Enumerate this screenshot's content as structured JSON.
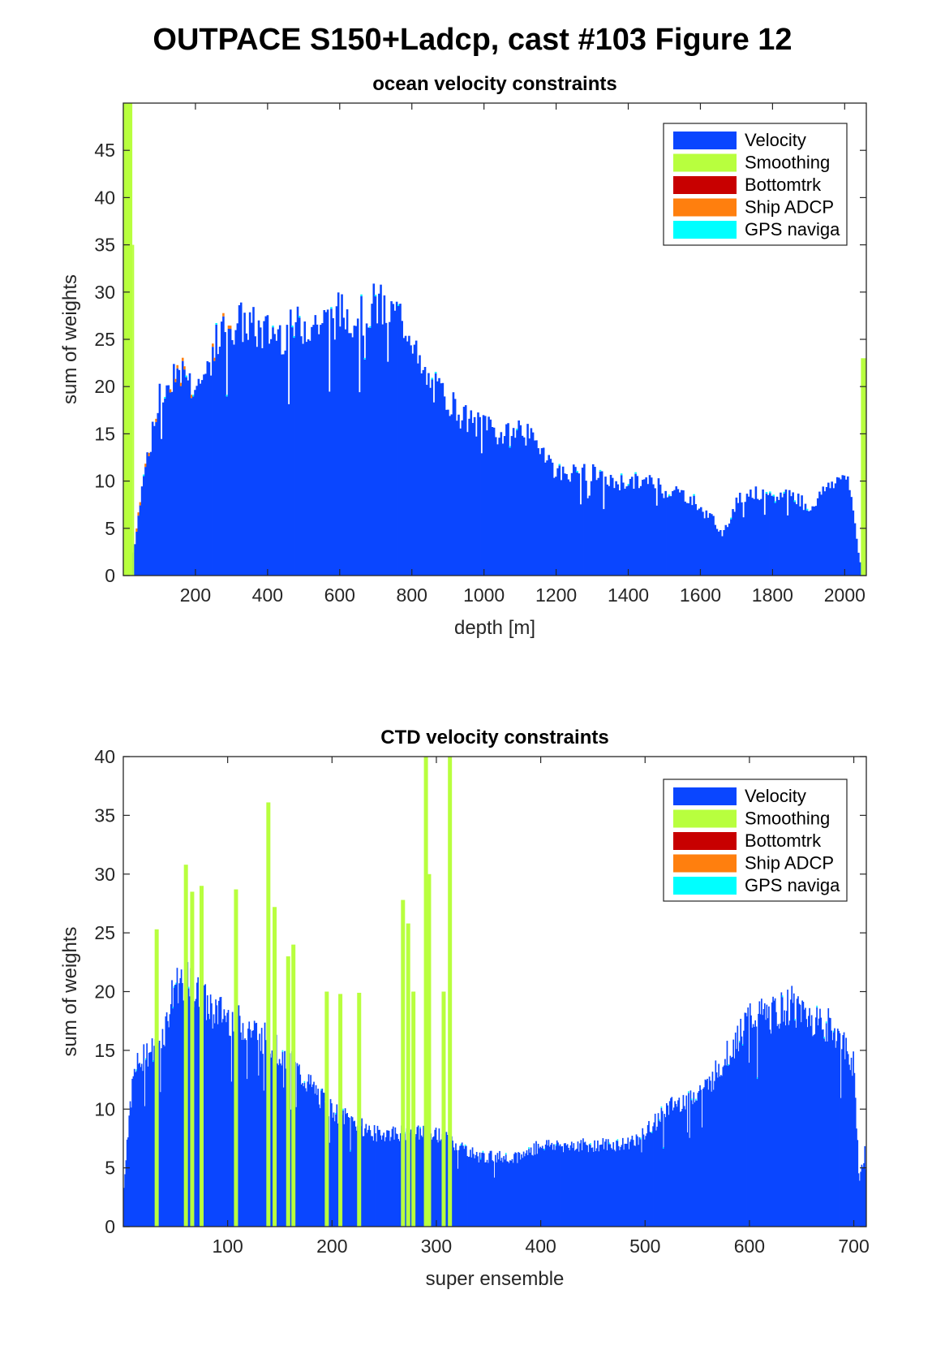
{
  "figure_title": "OUTPACE S150+Ladcp, cast #103  Figure 12",
  "chart_data": [
    {
      "type": "bar",
      "stacked": true,
      "title": "ocean velocity constraints",
      "xlabel": "depth [m]",
      "ylabel": "sum of weights",
      "xlim": [
        0,
        2060
      ],
      "ylim": [
        0,
        50
      ],
      "xticks": [
        200,
        400,
        600,
        800,
        1000,
        1200,
        1400,
        1600,
        1800,
        2000
      ],
      "yticks": [
        0,
        5,
        10,
        15,
        20,
        25,
        30,
        35,
        40,
        45
      ],
      "legend_position": "top-right",
      "legend": [
        "Velocity",
        "Smoothing",
        "Bottomtrk",
        "Ship ADCP",
        "GPS naviga"
      ],
      "colors": {
        "Velocity": "#0a46ff",
        "Smoothing": "#b8ff3e",
        "Bottomtrk": "#c80000",
        "Ship ADCP": "#ff7f0e",
        "GPS naviga": "#00ffff"
      },
      "x_profile": [
        0,
        10,
        20,
        30,
        40,
        60,
        80,
        100,
        120,
        140,
        160,
        180,
        200,
        220,
        240,
        260,
        280,
        300,
        340,
        380,
        420,
        460,
        500,
        540,
        560,
        600,
        640,
        660,
        700,
        740,
        760,
        780,
        800,
        820,
        860,
        900,
        940,
        980,
        1000,
        1040,
        1080,
        1100,
        1140,
        1160,
        1200,
        1240,
        1300,
        1340,
        1400,
        1440,
        1480,
        1500,
        1540,
        1580,
        1600,
        1640,
        1660,
        1700,
        1740,
        1800,
        1840,
        1880,
        1900,
        1940,
        1960,
        1980,
        2000,
        2020,
        2040,
        2050
      ],
      "velocity_profile": [
        0,
        0,
        1,
        3,
        6,
        12,
        15,
        19,
        20,
        22,
        22,
        21,
        20,
        21,
        23,
        25,
        26,
        27,
        27,
        26,
        26,
        26,
        27,
        27,
        27,
        28,
        28,
        28,
        29,
        28,
        28,
        27,
        26,
        22,
        20,
        19,
        17,
        16,
        17,
        15,
        15,
        16,
        14,
        14,
        11,
        11,
        11,
        10,
        10,
        10,
        10,
        9,
        9,
        8,
        7,
        6,
        4,
        8,
        9,
        8,
        9,
        8,
        7,
        9,
        10,
        10,
        11,
        8,
        2,
        0
      ],
      "smoothing_regions": [
        {
          "x_start": 0,
          "x_end": 25,
          "peak": 50
        },
        {
          "x_start": 25,
          "x_end": 30,
          "peak": 35
        },
        {
          "x_start": 2045,
          "x_end": 2060,
          "peak": 23
        }
      ],
      "ship_adcp_band": {
        "x_start": 20,
        "x_end": 300
      }
    },
    {
      "type": "bar",
      "stacked": true,
      "title": "CTD velocity constraints",
      "xlabel": "super ensemble",
      "ylabel": "sum of weights",
      "xlim": [
        0,
        712
      ],
      "ylim": [
        0,
        40
      ],
      "xticks": [
        100,
        200,
        300,
        400,
        500,
        600,
        700
      ],
      "yticks": [
        0,
        5,
        10,
        15,
        20,
        25,
        30,
        35,
        40
      ],
      "legend_position": "top-right",
      "legend": [
        "Velocity",
        "Smoothing",
        "Bottomtrk",
        "Ship ADCP",
        "GPS naviga"
      ],
      "colors": {
        "Velocity": "#0a46ff",
        "Smoothing": "#b8ff3e",
        "Bottomtrk": "#c80000",
        "Ship ADCP": "#ff7f0e",
        "GPS naviga": "#00ffff"
      },
      "x_profile": [
        0,
        5,
        10,
        20,
        30,
        40,
        50,
        60,
        70,
        80,
        100,
        120,
        140,
        160,
        180,
        200,
        220,
        240,
        260,
        280,
        300,
        320,
        340,
        360,
        380,
        400,
        420,
        440,
        460,
        480,
        500,
        520,
        540,
        560,
        580,
        600,
        620,
        640,
        660,
        680,
        700,
        705,
        712
      ],
      "velocity_profile": [
        3,
        9,
        13,
        15,
        15,
        17,
        21,
        21,
        20,
        19,
        18,
        17,
        16,
        14,
        12,
        10,
        9,
        8,
        8,
        8,
        8,
        7,
        6,
        6,
        6,
        7,
        7,
        7,
        7,
        7,
        8,
        10,
        11,
        12,
        15,
        18,
        18,
        19,
        18,
        17,
        14,
        4,
        7
      ],
      "smoothing_spikes": [
        {
          "x": 32,
          "value": 25.3
        },
        {
          "x": 60,
          "value": 30.8
        },
        {
          "x": 66,
          "value": 28.5
        },
        {
          "x": 75,
          "value": 29
        },
        {
          "x": 108,
          "value": 28.7
        },
        {
          "x": 139,
          "value": 36.1
        },
        {
          "x": 145,
          "value": 27.2
        },
        {
          "x": 158,
          "value": 23
        },
        {
          "x": 163,
          "value": 24
        },
        {
          "x": 195,
          "value": 20
        },
        {
          "x": 208,
          "value": 19.8
        },
        {
          "x": 226,
          "value": 19.9
        },
        {
          "x": 268,
          "value": 27.8
        },
        {
          "x": 273,
          "value": 25.8
        },
        {
          "x": 278,
          "value": 20
        },
        {
          "x": 290,
          "value": 40
        },
        {
          "x": 293,
          "value": 30
        },
        {
          "x": 307,
          "value": 20
        },
        {
          "x": 313,
          "value": 40
        }
      ]
    }
  ]
}
